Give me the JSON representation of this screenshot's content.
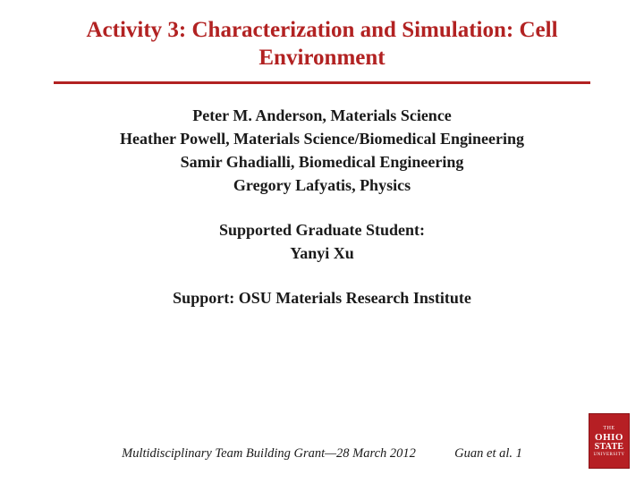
{
  "title": {
    "line1": "Activity 3: Characterization and Simulation:",
    "line2": "Cell Environment",
    "color": "#b22222",
    "fontsize": 25
  },
  "divider": {
    "color": "#b22222",
    "thickness": 3
  },
  "authors": [
    "Peter M. Anderson, Materials Science",
    "Heather Powell, Materials Science/Biomedical Engineering",
    "Samir Ghadialli, Biomedical Engineering",
    "Gregory Lafyatis, Physics"
  ],
  "student_heading": "Supported Graduate Student:",
  "student_name": "Yanyi Xu",
  "support": "Support: OSU Materials Research Institute",
  "footer": {
    "grant": "Multidisciplinary Team Building Grant—28 March 2012",
    "citation": "Guan et al.   1"
  },
  "logo": {
    "top": "THE",
    "mid1": "OHIO",
    "mid2": "STATE",
    "bottom": "UNIVERSITY",
    "bg": "#b61f24"
  },
  "colors": {
    "background": "#ffffff",
    "text": "#1a1a1a",
    "accent": "#b22222"
  }
}
